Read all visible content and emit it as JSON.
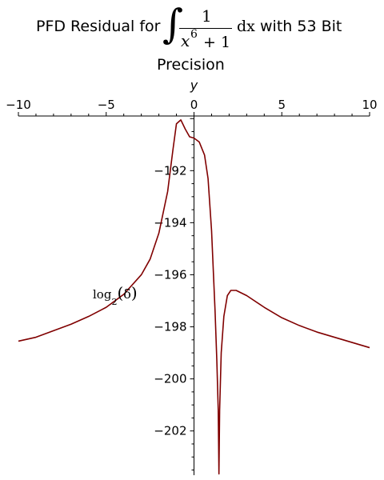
{
  "chart_data": {
    "type": "line",
    "title": {
      "prefix": "PFD Residual for",
      "integral_sign": "∫",
      "numerator": "1",
      "denominator_base": "x",
      "denominator_exp": "6",
      "denominator_rest": "+ 1",
      "differential": "dx",
      "suffix": "with 53 Bit",
      "second_line": "Precision"
    },
    "xlabel": "y",
    "ylabel": {
      "text": "log",
      "subscript": "2",
      "paren_open": "(",
      "symbol": "δ",
      "paren_close": ")"
    },
    "xlim": [
      -10,
      10
    ],
    "ylim": [
      -203.7,
      -189.9
    ],
    "x_ticks": [
      -10,
      -5,
      0,
      5,
      10
    ],
    "x_tick_labels": [
      "−10",
      "−5",
      "0",
      "5",
      "10"
    ],
    "y_ticks": [
      -192,
      -194,
      -196,
      -198,
      -200,
      -202
    ],
    "y_tick_labels": [
      "−192",
      "−194",
      "−196",
      "−198",
      "−200",
      "−202"
    ],
    "grid": false,
    "series": [
      {
        "color": "#800000",
        "points": [
          [
            -10,
            -198.55
          ],
          [
            -9,
            -198.4
          ],
          [
            -8,
            -198.15
          ],
          [
            -7,
            -197.9
          ],
          [
            -6,
            -197.6
          ],
          [
            -5,
            -197.25
          ],
          [
            -4,
            -196.75
          ],
          [
            -3,
            -196.0
          ],
          [
            -2.5,
            -195.4
          ],
          [
            -2,
            -194.4
          ],
          [
            -1.5,
            -192.8
          ],
          [
            -1.2,
            -191.2
          ],
          [
            -1.0,
            -190.2
          ],
          [
            -0.75,
            -190.05
          ],
          [
            -0.5,
            -190.4
          ],
          [
            -0.25,
            -190.7
          ],
          [
            0,
            -190.75
          ],
          [
            0.3,
            -190.9
          ],
          [
            0.6,
            -191.4
          ],
          [
            0.8,
            -192.3
          ],
          [
            1.0,
            -194.3
          ],
          [
            1.2,
            -197.4
          ],
          [
            1.3,
            -199.3
          ],
          [
            1.38,
            -201.2
          ],
          [
            1.42,
            -203.65
          ],
          [
            1.46,
            -201.2
          ],
          [
            1.55,
            -199.0
          ],
          [
            1.7,
            -197.6
          ],
          [
            1.9,
            -196.8
          ],
          [
            2.1,
            -196.6
          ],
          [
            2.4,
            -196.6
          ],
          [
            3,
            -196.8
          ],
          [
            4,
            -197.25
          ],
          [
            5,
            -197.65
          ],
          [
            6,
            -197.95
          ],
          [
            7,
            -198.2
          ],
          [
            8,
            -198.4
          ],
          [
            9,
            -198.6
          ],
          [
            10,
            -198.8
          ]
        ]
      }
    ]
  }
}
